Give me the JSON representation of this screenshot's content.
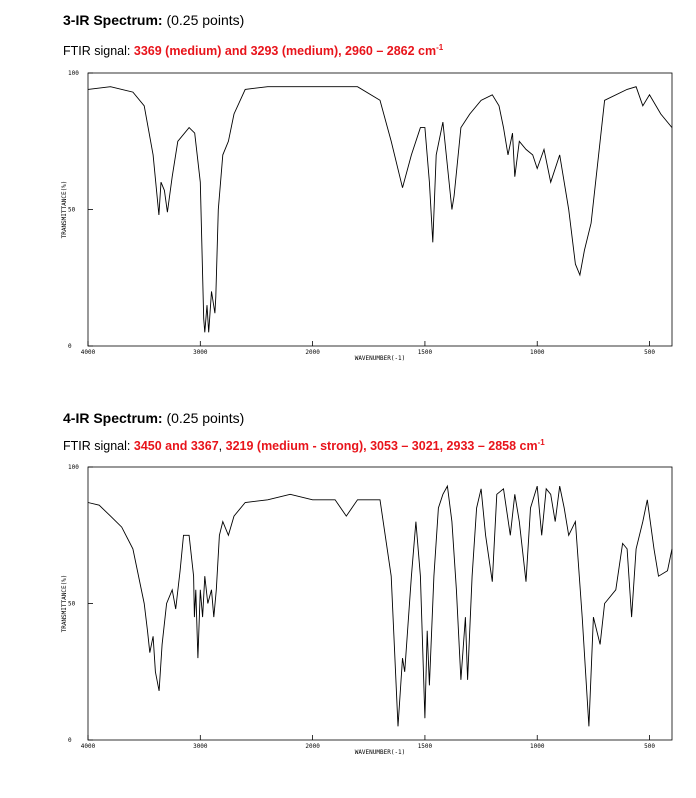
{
  "sections": [
    {
      "title": "3-IR Spectrum:",
      "points": "(0.25 points)",
      "signal_label": "FTIR signal:",
      "signal": [
        {
          "text": "3369 (medium) and 3293 (medium), 2960 – 2862 cm",
          "color": "#e8141b"
        }
      ],
      "signal_sup": "-1",
      "chart_data": {
        "type": "line",
        "ylabel": "TRANSMITTANCE(%)",
        "xlabel": "WAVENUMBER(-1)",
        "xlim": [
          4000,
          400
        ],
        "x_break": 2000,
        "ylim": [
          0,
          100
        ],
        "xticks": [
          4000,
          3000,
          2000,
          1500,
          1000,
          500
        ],
        "yticks": [
          0,
          50,
          100
        ],
        "color": "#000000",
        "x": [
          4000,
          3800,
          3600,
          3500,
          3420,
          3369,
          3350,
          3320,
          3293,
          3250,
          3200,
          3100,
          3050,
          3000,
          2970,
          2960,
          2940,
          2925,
          2900,
          2870,
          2862,
          2840,
          2800,
          2750,
          2700,
          2600,
          2400,
          2000,
          1800,
          1700,
          1650,
          1600,
          1560,
          1520,
          1500,
          1480,
          1465,
          1450,
          1420,
          1380,
          1370,
          1340,
          1300,
          1250,
          1200,
          1170,
          1150,
          1130,
          1110,
          1100,
          1080,
          1050,
          1020,
          1000,
          970,
          940,
          900,
          860,
          830,
          810,
          790,
          760,
          740,
          720,
          700,
          600,
          560,
          530,
          500,
          450,
          400
        ],
        "values": [
          94,
          95,
          93,
          88,
          70,
          48,
          60,
          57,
          49,
          62,
          75,
          80,
          78,
          60,
          10,
          5,
          15,
          5,
          20,
          12,
          18,
          50,
          70,
          75,
          85,
          94,
          95,
          95,
          95,
          90,
          75,
          58,
          70,
          80,
          80,
          60,
          38,
          70,
          82,
          50,
          55,
          80,
          85,
          90,
          92,
          88,
          80,
          70,
          78,
          62,
          75,
          72,
          70,
          65,
          72,
          60,
          70,
          50,
          30,
          26,
          35,
          45,
          60,
          75,
          90,
          94,
          95,
          88,
          92,
          85,
          80
        ]
      }
    },
    {
      "title": "4-IR Spectrum:",
      "points": "(0.25 points)",
      "signal_label": "FTIR signal:",
      "signal": [
        {
          "text": "3450 and 3367",
          "color": "#e8141b"
        },
        {
          "text": ", ",
          "color": "#000000"
        },
        {
          "text": "3219 (medium - strong), 3053 – 3021, 2933 – 2858 cm",
          "color": "#e8141b"
        }
      ],
      "signal_sup": "-1",
      "chart_data": {
        "type": "line",
        "ylabel": "TRANSMITTANCE(%)",
        "xlabel": "WAVENUMBER(-1)",
        "xlim": [
          4000,
          400
        ],
        "x_break": 2000,
        "ylim": [
          0,
          100
        ],
        "xticks": [
          4000,
          3000,
          2000,
          1500,
          1000,
          500
        ],
        "yticks": [
          0,
          50,
          100
        ],
        "color": "#000000",
        "x": [
          4000,
          3900,
          3800,
          3700,
          3600,
          3500,
          3470,
          3450,
          3420,
          3400,
          3367,
          3340,
          3300,
          3250,
          3219,
          3180,
          3150,
          3100,
          3060,
          3053,
          3040,
          3021,
          3000,
          2980,
          2960,
          2933,
          2900,
          2880,
          2858,
          2830,
          2800,
          2750,
          2700,
          2600,
          2400,
          2200,
          2000,
          1900,
          1850,
          1800,
          1700,
          1650,
          1620,
          1600,
          1590,
          1560,
          1540,
          1520,
          1500,
          1490,
          1480,
          1460,
          1440,
          1420,
          1400,
          1380,
          1360,
          1340,
          1320,
          1310,
          1290,
          1270,
          1250,
          1230,
          1200,
          1180,
          1150,
          1120,
          1100,
          1080,
          1050,
          1030,
          1000,
          980,
          960,
          940,
          920,
          900,
          880,
          860,
          830,
          800,
          770,
          750,
          720,
          700,
          650,
          620,
          600,
          580,
          560,
          530,
          510,
          480,
          460,
          420,
          400
        ],
        "values": [
          87,
          86,
          82,
          78,
          70,
          50,
          40,
          32,
          38,
          25,
          18,
          35,
          50,
          55,
          48,
          62,
          75,
          75,
          60,
          45,
          55,
          30,
          55,
          45,
          60,
          50,
          55,
          45,
          55,
          75,
          80,
          75,
          82,
          87,
          88,
          90,
          88,
          88,
          82,
          88,
          88,
          60,
          5,
          30,
          25,
          60,
          80,
          60,
          8,
          40,
          20,
          60,
          85,
          90,
          93,
          80,
          55,
          22,
          45,
          22,
          60,
          85,
          92,
          75,
          58,
          90,
          92,
          75,
          90,
          80,
          58,
          85,
          93,
          75,
          92,
          90,
          80,
          93,
          85,
          75,
          80,
          45,
          5,
          45,
          35,
          50,
          55,
          72,
          70,
          45,
          70,
          80,
          88,
          70,
          60,
          62,
          70
        ]
      }
    }
  ]
}
